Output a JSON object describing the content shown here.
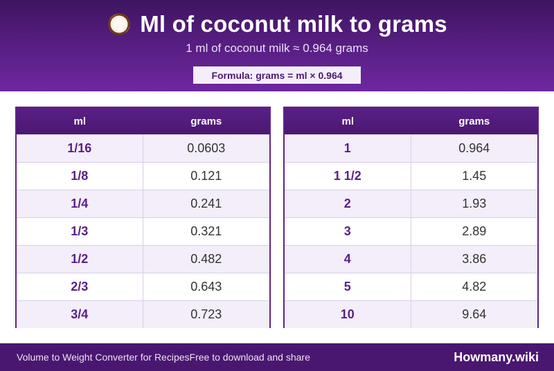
{
  "header": {
    "title": "Ml of coconut milk to grams",
    "icon": "coconut-icon",
    "subtitle": "1 ml of coconut milk ≈ 0.964 grams",
    "formula": "Formula: grams = ml × 0.964"
  },
  "tables": [
    {
      "col_ml": "ml",
      "col_grams": "grams",
      "rows": [
        {
          "ml": "1/16",
          "grams": "0.0603"
        },
        {
          "ml": "1/8",
          "grams": "0.121"
        },
        {
          "ml": "1/4",
          "grams": "0.241"
        },
        {
          "ml": "1/3",
          "grams": "0.321"
        },
        {
          "ml": "1/2",
          "grams": "0.482"
        },
        {
          "ml": "2/3",
          "grams": "0.643"
        },
        {
          "ml": "3/4",
          "grams": "0.723"
        }
      ]
    },
    {
      "col_ml": "ml",
      "col_grams": "grams",
      "rows": [
        {
          "ml": "1",
          "grams": "0.964"
        },
        {
          "ml": "1 1/2",
          "grams": "1.45"
        },
        {
          "ml": "2",
          "grams": "1.93"
        },
        {
          "ml": "3",
          "grams": "2.89"
        },
        {
          "ml": "4",
          "grams": "3.86"
        },
        {
          "ml": "5",
          "grams": "4.82"
        },
        {
          "ml": "10",
          "grams": "9.64"
        }
      ]
    }
  ],
  "footer": {
    "left_text_1": "Volume to Weight Converter for Recipes",
    "left_text_2": "Free to download and share",
    "brand": "Howmany.wiki"
  },
  "colors": {
    "header_bg": "#5a1f86",
    "accent": "#5a1f86",
    "footer_bg": "#4a1770",
    "row_alt": "#f3eef9"
  }
}
